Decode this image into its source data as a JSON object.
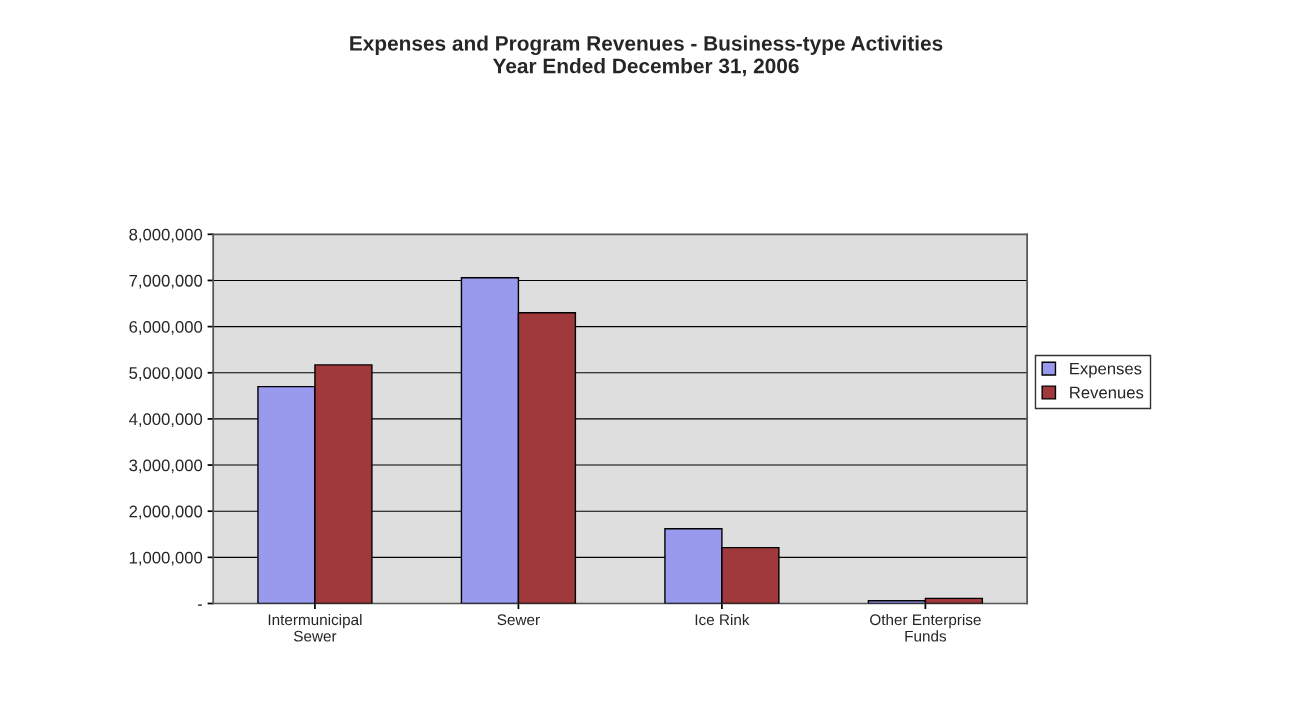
{
  "chart_data": {
    "type": "bar",
    "title": "Expenses and Program Revenues - Business-type Activities\nYear Ended December 31, 2006",
    "categories": [
      "Intermunicipal\nSewer",
      "Sewer",
      "Ice Rink",
      "Other Enterprise\nFunds"
    ],
    "series": [
      {
        "name": "Expenses",
        "color": "#9999ee",
        "values": [
          4700000,
          7060000,
          1620000,
          60000
        ]
      },
      {
        "name": "Revenues",
        "color": "#a0393c",
        "values": [
          5170000,
          6300000,
          1210000,
          110000
        ]
      }
    ],
    "ylim": [
      0,
      8000000
    ],
    "yticks": [
      {
        "value": 0,
        "label": "-"
      },
      {
        "value": 1000000,
        "label": "1,000,000"
      },
      {
        "value": 2000000,
        "label": "2,000,000"
      },
      {
        "value": 3000000,
        "label": "3,000,000"
      },
      {
        "value": 4000000,
        "label": "4,000,000"
      },
      {
        "value": 5000000,
        "label": "5,000,000"
      },
      {
        "value": 6000000,
        "label": "6,000,000"
      },
      {
        "value": 7000000,
        "label": "7,000,000"
      },
      {
        "value": 8000000,
        "label": "8,000,000"
      }
    ],
    "grid": "y",
    "legend": "right"
  }
}
